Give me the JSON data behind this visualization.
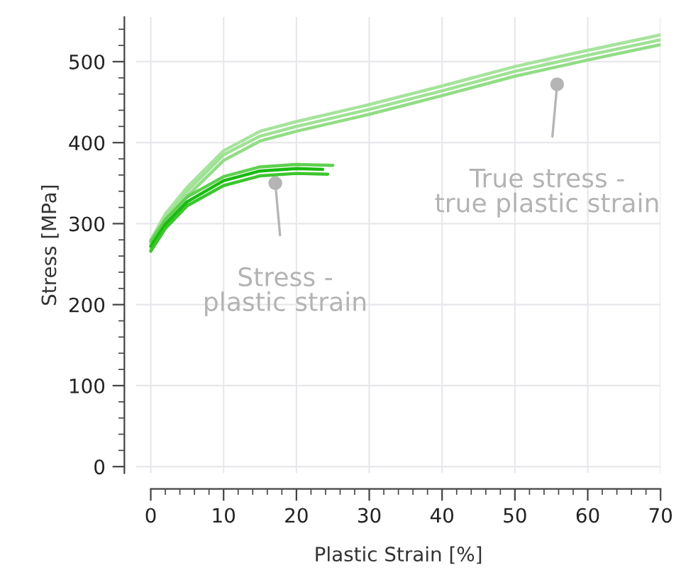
{
  "chart_data": {
    "type": "line",
    "xlabel": "Plastic Strain [%]",
    "ylabel": "Stress [MPa]",
    "xlim": [
      -2,
      70
    ],
    "ylim": [
      -8,
      555
    ],
    "xticks": [
      0,
      10,
      20,
      30,
      40,
      50,
      60,
      70
    ],
    "yticks": [
      0,
      100,
      200,
      300,
      400,
      500
    ],
    "grid": true,
    "line_style": "solid",
    "series": [
      {
        "color": "#a6e49c",
        "x": [
          0,
          2,
          5,
          10,
          15,
          20,
          30,
          40,
          50,
          60,
          70
        ],
        "values": [
          280,
          312,
          345,
          390,
          414,
          426,
          447,
          470,
          494,
          514,
          533
        ]
      },
      {
        "color": "#9fe294",
        "x": [
          0,
          2,
          5,
          10,
          15,
          20,
          30,
          40,
          50,
          60,
          70
        ],
        "values": [
          275,
          307,
          340,
          385,
          408,
          420,
          441,
          464,
          488,
          508,
          527
        ]
      },
      {
        "color": "#92dd86",
        "x": [
          0,
          2,
          5,
          10,
          15,
          20,
          30,
          40,
          50,
          60,
          70
        ],
        "values": [
          268,
          300,
          334,
          378,
          402,
          414,
          435,
          458,
          482,
          502,
          521
        ]
      },
      {
        "color": "#5fd04f",
        "x": [
          0,
          2,
          5,
          10,
          15,
          20,
          25
        ],
        "values": [
          278,
          305,
          333,
          358,
          370,
          373,
          372
        ]
      },
      {
        "color": "#18bb10",
        "x": [
          0,
          2,
          5,
          10,
          15,
          20,
          23.6
        ],
        "values": [
          272,
          299,
          327,
          353,
          365,
          368,
          367
        ]
      },
      {
        "color": "#3cc62e",
        "x": [
          0,
          2,
          5,
          10,
          15,
          20,
          24.3
        ],
        "values": [
          266,
          294,
          322,
          347,
          359,
          362,
          361
        ]
      }
    ],
    "annotations": [
      {
        "text": "Stress -\nplastic strain",
        "x": 17.1,
        "y": 350
      },
      {
        "text": "True stress -\ntrue plastic strain",
        "x": 55.8,
        "y": 472
      }
    ]
  }
}
